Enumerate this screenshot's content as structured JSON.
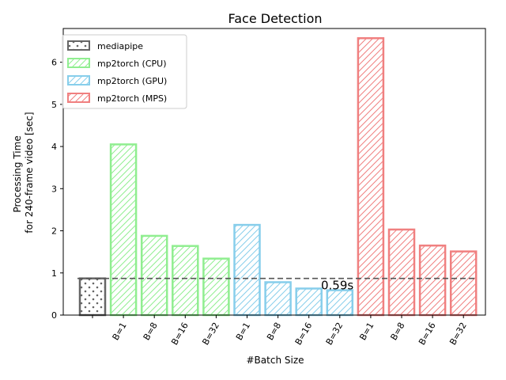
{
  "chart_data": {
    "type": "bar",
    "title": "Face Detection",
    "xlabel": "#Batch Size",
    "ylabel_lines": [
      "Processing Time",
      "for 240-frame video [sec]"
    ],
    "ylim": [
      0,
      6.8
    ],
    "yticks": [
      0,
      1,
      2,
      3,
      4,
      5,
      6
    ],
    "grid": false,
    "legend_position": "top-left",
    "reference_line": {
      "value": 0.87,
      "label": "0.59s",
      "color": "#555555",
      "style": "dashed"
    },
    "categories": [
      "",
      "B=1",
      "B=8",
      "B=16",
      "B=32",
      "B=1",
      "B=8",
      "B=16",
      "B=32",
      "B=1",
      "B=8",
      "B=16",
      "B=32"
    ],
    "series": [
      {
        "name": "mediapipe",
        "color": "#666666",
        "hatch": "dots",
        "values": [
          0.87,
          null,
          null,
          null,
          null,
          null,
          null,
          null,
          null,
          null,
          null,
          null,
          null
        ]
      },
      {
        "name": "mp2torch (CPU)",
        "color": "#90ee90",
        "hatch": "diagonal",
        "values": [
          null,
          4.05,
          1.88,
          1.64,
          1.34,
          null,
          null,
          null,
          null,
          null,
          null,
          null,
          null
        ]
      },
      {
        "name": "mp2torch (GPU)",
        "color": "#87ceeb",
        "hatch": "diagonal",
        "values": [
          null,
          null,
          null,
          null,
          null,
          2.14,
          0.78,
          0.63,
          0.59,
          null,
          null,
          null,
          null
        ]
      },
      {
        "name": "mp2torch (MPS)",
        "color": "#f08080",
        "hatch": "diagonal",
        "values": [
          null,
          null,
          null,
          null,
          null,
          null,
          null,
          null,
          null,
          6.57,
          2.03,
          1.65,
          1.51
        ]
      }
    ]
  }
}
